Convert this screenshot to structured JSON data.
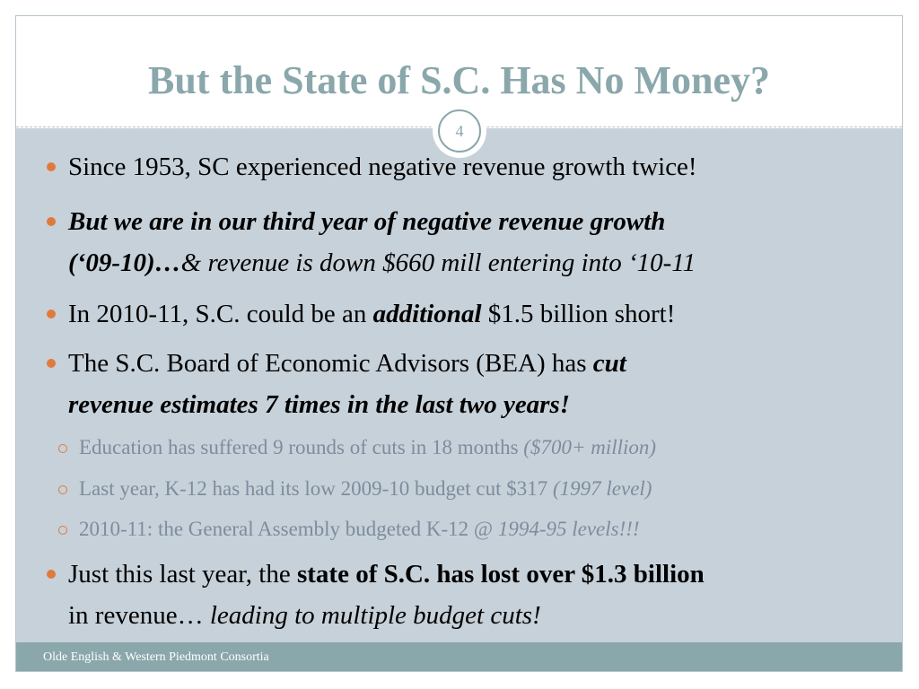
{
  "slide": {
    "title": "But the State of S.C. Has No Money?",
    "number": "4",
    "footer": "Olde English & Western Piedmont Consortia"
  },
  "bullets": {
    "b1": {
      "text": "Since 1953, SC experienced negative revenue growth twice!"
    },
    "b2": {
      "line1_bi": "But we are in our third year of negative revenue growth",
      "line2_bi": "(‘09-10)…",
      "line2_i": "& revenue is down $660 mill entering into ‘10-11"
    },
    "b3": {
      "pre": "In 2010-11, S.C. could be an ",
      "bi": "additional",
      "post": " $1.5 billion short!"
    },
    "b4": {
      "pre": "The S.C. Board of Economic Advisors (BEA) has ",
      "bi1": "cut",
      "bi2": "revenue estimates 7 times in the last two years!"
    },
    "sub1": {
      "text": "Education has suffered 9 rounds of cuts in 18 months ",
      "i": "($700+ million)"
    },
    "sub2": {
      "text": "Last year, K-12 has had its low 2009-10 budget cut $317 ",
      "i": "(1997 level)"
    },
    "sub3": {
      "text": "2010-11: the General Assembly budgeted K-12 @ ",
      "i": "1994-95 levels!!!"
    },
    "b5": {
      "pre": "Just this last year, the ",
      "b": "state of S.C. has lost over $1.3 billion",
      "line2": "in revenue… ",
      "line2_i": "leading to multiple budget cuts!"
    }
  },
  "colors": {
    "title": "#8aa7ab",
    "content_bg": "#c7d1d9",
    "footer_bg": "#8aa7ab",
    "bullet_marker": "#e07a3c",
    "sub_text": "#7d8c9e"
  }
}
